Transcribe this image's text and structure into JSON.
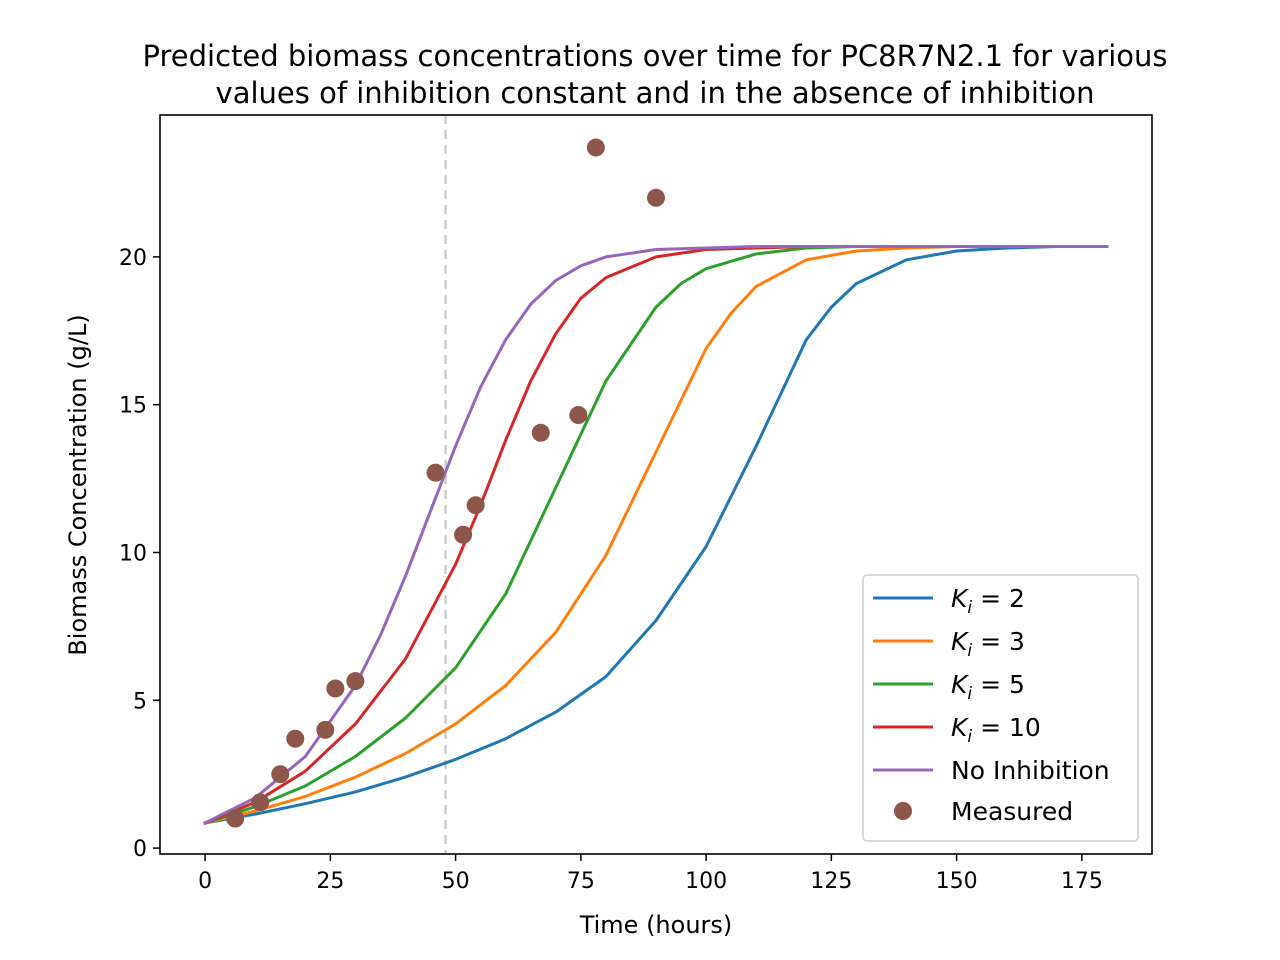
{
  "chart_data": {
    "type": "line",
    "title_lines": [
      "Predicted biomass concentrations over time for PC8R7N2.1 for various",
      "values of inhibition constant and in the absence of inhibition"
    ],
    "xlabel": "Time (hours)",
    "ylabel": "Biomass Concentration (g/L)",
    "xlim": [
      -9,
      189
    ],
    "ylim": [
      -0.2,
      24.8
    ],
    "xticks": [
      0,
      25,
      50,
      75,
      100,
      125,
      150,
      175
    ],
    "yticks": [
      0,
      5,
      10,
      15,
      20
    ],
    "vline": {
      "x": 48,
      "color": "#cccccc",
      "style": "dashed"
    },
    "legend_position": "lower-right",
    "series": [
      {
        "legend_var": "K",
        "legend_sub": "i",
        "legend_rest": " = 2",
        "color": "#1f77b4",
        "x": [
          0,
          10,
          20,
          30,
          40,
          50,
          60,
          70,
          80,
          90,
          100,
          110,
          120,
          125,
          130,
          140,
          150,
          160,
          170,
          180
        ],
        "y": [
          0.85,
          1.15,
          1.5,
          1.9,
          2.4,
          3.0,
          3.7,
          4.6,
          5.8,
          7.7,
          10.2,
          13.6,
          17.2,
          18.3,
          19.1,
          19.9,
          20.2,
          20.3,
          20.35,
          20.35
        ]
      },
      {
        "legend_var": "K",
        "legend_sub": "i",
        "legend_rest": " = 3",
        "color": "#ff7f0e",
        "x": [
          0,
          10,
          20,
          30,
          40,
          50,
          60,
          70,
          80,
          90,
          100,
          105,
          110,
          120,
          130,
          140,
          150,
          160,
          180
        ],
        "y": [
          0.85,
          1.25,
          1.75,
          2.4,
          3.2,
          4.2,
          5.5,
          7.3,
          9.9,
          13.4,
          16.9,
          18.1,
          19.0,
          19.9,
          20.2,
          20.3,
          20.35,
          20.35,
          20.35
        ]
      },
      {
        "legend_var": "K",
        "legend_sub": "i",
        "legend_rest": " = 5",
        "color": "#2ca02c",
        "x": [
          0,
          10,
          20,
          30,
          40,
          50,
          60,
          70,
          80,
          90,
          95,
          100,
          110,
          120,
          130,
          140,
          160,
          180
        ],
        "y": [
          0.85,
          1.4,
          2.1,
          3.1,
          4.4,
          6.1,
          8.6,
          12.2,
          15.8,
          18.3,
          19.1,
          19.6,
          20.1,
          20.3,
          20.35,
          20.35,
          20.35,
          20.35
        ]
      },
      {
        "legend_var": "K",
        "legend_sub": "i",
        "legend_rest": " = 10",
        "color": "#d62728",
        "x": [
          0,
          10,
          20,
          30,
          40,
          50,
          55,
          60,
          65,
          70,
          75,
          80,
          90,
          100,
          110,
          120,
          140,
          180
        ],
        "y": [
          0.85,
          1.55,
          2.6,
          4.2,
          6.4,
          9.6,
          11.6,
          13.8,
          15.8,
          17.4,
          18.6,
          19.3,
          20.0,
          20.25,
          20.3,
          20.35,
          20.35,
          20.35
        ]
      },
      {
        "legend_var": "",
        "legend_sub": "",
        "legend_rest": "No Inhibition",
        "color": "#9467bd",
        "x": [
          0,
          10,
          20,
          30,
          35,
          40,
          45,
          50,
          55,
          60,
          65,
          70,
          75,
          80,
          90,
          100,
          110,
          120,
          140,
          180
        ],
        "y": [
          0.85,
          1.7,
          3.1,
          5.5,
          7.2,
          9.2,
          11.4,
          13.6,
          15.6,
          17.2,
          18.4,
          19.2,
          19.7,
          20.0,
          20.25,
          20.3,
          20.35,
          20.35,
          20.35,
          20.35
        ]
      }
    ],
    "scatter": {
      "name": "Measured",
      "color": "#8c564b",
      "x": [
        6,
        11,
        15,
        18,
        24,
        26,
        30,
        46,
        51.5,
        54,
        67,
        74.5,
        78,
        90
      ],
      "y": [
        1.0,
        1.55,
        2.5,
        3.7,
        4.0,
        5.4,
        5.65,
        12.7,
        10.6,
        11.6,
        14.05,
        14.65,
        23.7,
        22.0
      ]
    }
  }
}
